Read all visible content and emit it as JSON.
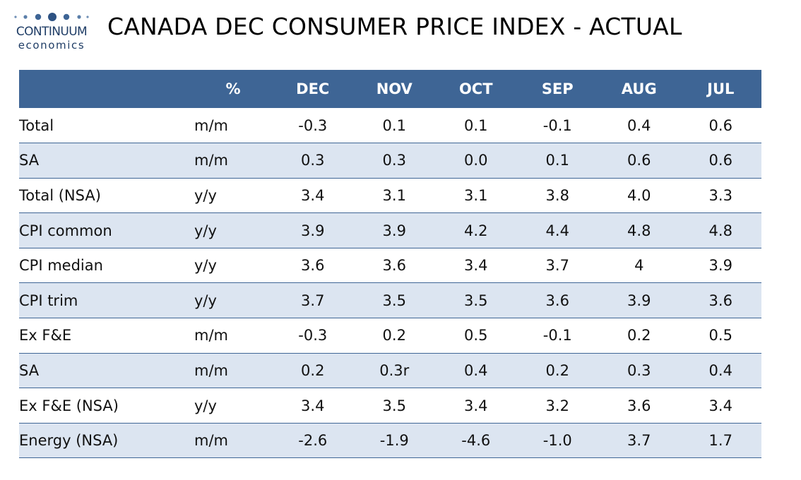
{
  "brand": {
    "name": "CONTINUUM",
    "sub": "economics",
    "color": "#1f3d66"
  },
  "title": "CANADA DEC CONSUMER PRICE INDEX - ACTUAL",
  "colors": {
    "header_bg": "#3e6595",
    "header_text": "#ffffff",
    "row_alt": "#dce5f1"
  },
  "table": {
    "headers": [
      "",
      "%",
      "DEC",
      "NOV",
      "OCT",
      "SEP",
      "AUG",
      "JUL"
    ],
    "rows": [
      {
        "label": "Total",
        "unit": "m/m",
        "values": [
          "-0.3",
          "0.1",
          "0.1",
          "-0.1",
          "0.4",
          "0.6"
        ]
      },
      {
        "label": "SA",
        "unit": "m/m",
        "values": [
          "0.3",
          "0.3",
          "0.0",
          "0.1",
          "0.6",
          "0.6"
        ]
      },
      {
        "label": "Total (NSA)",
        "unit": "y/y",
        "values": [
          "3.4",
          "3.1",
          "3.1",
          "3.8",
          "4.0",
          "3.3"
        ]
      },
      {
        "label": "CPI common",
        "unit": "y/y",
        "values": [
          "3.9",
          "3.9",
          "4.2",
          "4.4",
          "4.8",
          "4.8"
        ]
      },
      {
        "label": "CPI median",
        "unit": "y/y",
        "values": [
          "3.6",
          "3.6",
          "3.4",
          "3.7",
          "4",
          "3.9"
        ]
      },
      {
        "label": "CPI trim",
        "unit": "y/y",
        "values": [
          "3.7",
          "3.5",
          "3.5",
          "3.6",
          "3.9",
          "3.6"
        ]
      },
      {
        "label": "Ex F&E",
        "unit": "m/m",
        "values": [
          "-0.3",
          "0.2",
          "0.5",
          "-0.1",
          "0.2",
          "0.5"
        ]
      },
      {
        "label": "SA",
        "unit": "m/m",
        "values": [
          "0.2",
          "0.3r",
          "0.4",
          "0.2",
          "0.3",
          "0.4"
        ]
      },
      {
        "label": "Ex F&E (NSA)",
        "unit": "y/y",
        "values": [
          "3.4",
          "3.5",
          "3.4",
          "3.2",
          "3.6",
          "3.4"
        ]
      },
      {
        "label": "Energy (NSA)",
        "unit": "m/m",
        "values": [
          "-2.6",
          "-1.9",
          "-4.6",
          "-1.0",
          "3.7",
          "1.7"
        ]
      }
    ]
  }
}
